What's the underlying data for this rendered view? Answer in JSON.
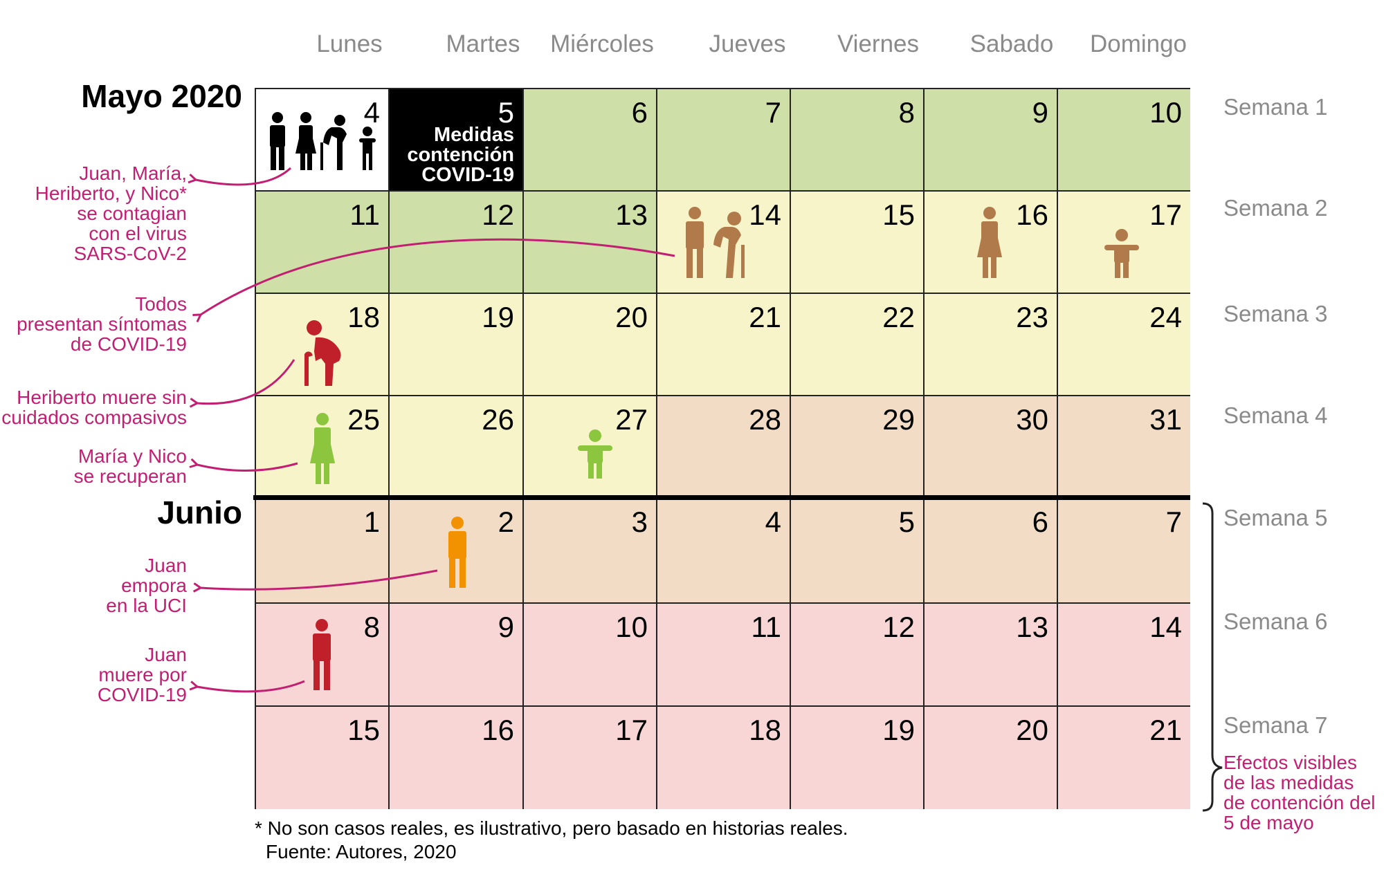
{
  "weekdays": [
    "Lunes",
    "Martes",
    "Miércoles",
    "Jueves",
    "Viernes",
    "Sabado",
    "Domingo"
  ],
  "months": {
    "may": "Mayo 2020",
    "june": "Junio"
  },
  "weeks": [
    "Semana 1",
    "Semana 2",
    "Semana 3",
    "Semana 4",
    "Semana 5",
    "Semana 6",
    "Semana 7"
  ],
  "days": [
    [
      "4",
      "5",
      "6",
      "7",
      "8",
      "9",
      "10"
    ],
    [
      "11",
      "12",
      "13",
      "14",
      "15",
      "16",
      "17"
    ],
    [
      "18",
      "19",
      "20",
      "21",
      "22",
      "23",
      "24"
    ],
    [
      "25",
      "26",
      "27",
      "28",
      "29",
      "30",
      "31"
    ],
    [
      "1",
      "2",
      "3",
      "4",
      "5",
      "6",
      "7"
    ],
    [
      "8",
      "9",
      "10",
      "11",
      "12",
      "13",
      "14"
    ],
    [
      "15",
      "16",
      "17",
      "18",
      "19",
      "20",
      "21"
    ]
  ],
  "cell_colors": [
    [
      "#ffffff",
      "#000000",
      "#cfdfa8",
      "#cfdfa8",
      "#cfdfa8",
      "#cfdfa8",
      "#cfdfa8"
    ],
    [
      "#cfdfa8",
      "#cfdfa8",
      "#cfdfa8",
      "#f6f4c8",
      "#f6f4c8",
      "#f6f4c8",
      "#f6f4c8"
    ],
    [
      "#f6f4c8",
      "#f6f4c8",
      "#f6f4c8",
      "#f6f4c8",
      "#f6f4c8",
      "#f6f4c8",
      "#f6f4c8"
    ],
    [
      "#f6f4c8",
      "#f6f4c8",
      "#f6f4c8",
      "#f2dcc6",
      "#f2dcc6",
      "#f2dcc6",
      "#f2dcc6"
    ],
    [
      "#f2dcc6",
      "#f2dcc6",
      "#f2dcc6",
      "#f2dcc6",
      "#f2dcc6",
      "#f2dcc6",
      "#f2dcc6"
    ],
    [
      "#f9d6d6",
      "#f9d6d6",
      "#f9d6d6",
      "#f9d6d6",
      "#f9d6d6",
      "#f9d6d6",
      "#f9d6d6"
    ],
    [
      "#f9d6d6",
      "#f9d6d6",
      "#f9d6d6",
      "#f9d6d6",
      "#f9d6d6",
      "#f9d6d6",
      "#f9d6d6"
    ]
  ],
  "measure_note": [
    "Medidas",
    "contención",
    "COVID-19"
  ],
  "annotations": {
    "contagio": [
      "Juan, María,",
      "Heriberto, y Nico*",
      "se contagian",
      "con el virus",
      "SARS-CoV-2"
    ],
    "sintomas": [
      "Todos",
      "presentan síntomas",
      "de COVID-19"
    ],
    "heriberto": [
      "Heriberto muere sin",
      "cuidados compasivos"
    ],
    "recuperan": [
      "María y Nico",
      "se recuperan"
    ],
    "uci": [
      "Juan",
      "empora",
      "en la UCI"
    ],
    "muere": [
      "Juan",
      "muere por",
      "COVID-19"
    ]
  },
  "effects": [
    "Efectos visibles",
    "de las medidas",
    "de contención del",
    "5 de mayo"
  ],
  "footnote": "* No son casos reales, es ilustrativo, pero basado en historias reales.",
  "source": "Fuente: Autores, 2020",
  "colors": {
    "brown": "#b07a4a",
    "dark_red": "#c0202a",
    "green": "#8cc63f",
    "orange": "#f39200",
    "magenta": "#c21f72",
    "gray": "#8a8a8a"
  },
  "icons": [
    "man-icon",
    "woman-icon",
    "elderly-man-icon",
    "child-icon"
  ]
}
